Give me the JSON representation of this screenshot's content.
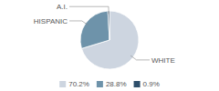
{
  "chart_data": {
    "type": "pie",
    "categories": [
      "WHITE",
      "HISPANIC",
      "A.I."
    ],
    "values": [
      70.2,
      28.8,
      0.9
    ],
    "value_labels": [
      "70.2%",
      "28.8%",
      "0.9%"
    ],
    "colors": [
      "#cdd5e0",
      "#6e93aa",
      "#2e4f6b"
    ],
    "legend": "bottom"
  }
}
